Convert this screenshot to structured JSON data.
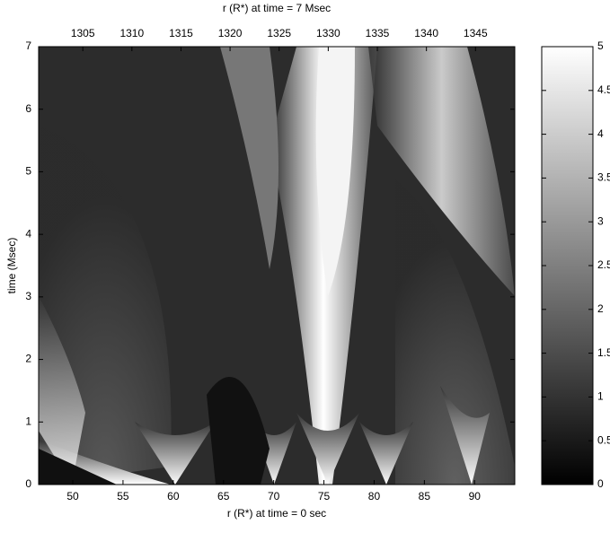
{
  "chart_data": {
    "type": "heatmap",
    "title": "r (R*) at time = 7 Msec",
    "x_label": "r (R*) at time = 0 sec",
    "y_label": "time (Msec)",
    "xlim": [
      46.6,
      94
    ],
    "xticks": [
      50,
      55,
      60,
      65,
      70,
      75,
      80,
      85,
      90
    ],
    "x2lim": [
      1300.5,
      1349
    ],
    "x2ticks": [
      1305,
      1310,
      1315,
      1320,
      1325,
      1330,
      1335,
      1340,
      1345
    ],
    "ylim": [
      0,
      7
    ],
    "yticks": [
      0,
      1,
      2,
      3,
      4,
      5,
      6,
      7
    ],
    "colorbar": {
      "lim": [
        0,
        5
      ],
      "ticks": [
        0,
        0.5,
        1,
        1.5,
        2,
        2.5,
        3,
        3.5,
        4,
        4.5,
        5
      ],
      "colors": [
        "#000000",
        "#ffffff"
      ]
    }
  }
}
